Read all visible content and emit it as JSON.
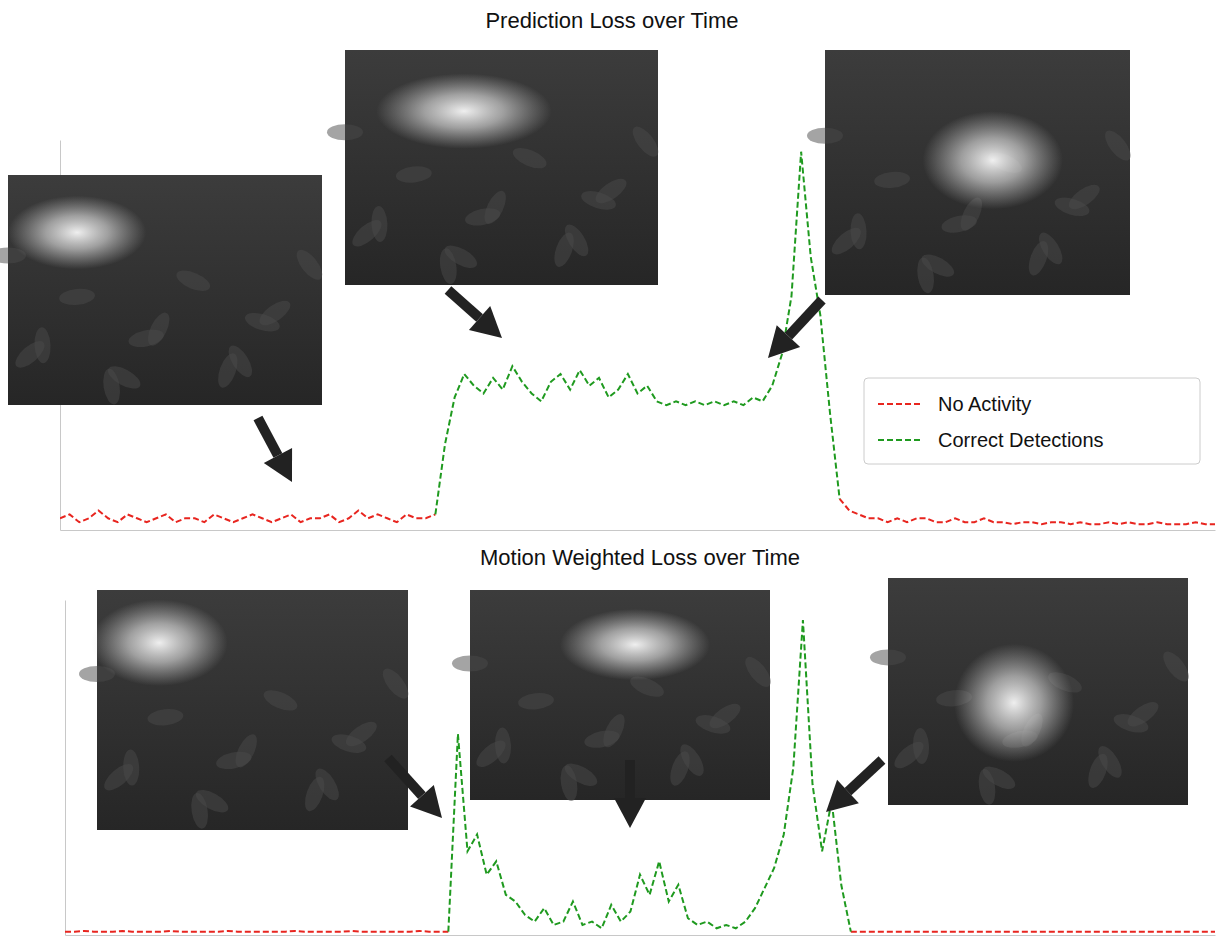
{
  "chart_data": [
    {
      "type": "line",
      "title": "Prediction Loss over Time",
      "tick_labels": false,
      "legend": "right",
      "line_style": "dashed",
      "xlim": [
        0,
        120
      ],
      "ylim": [
        0,
        100
      ],
      "x": [
        0,
        1,
        2,
        3,
        4,
        5,
        6,
        7,
        8,
        9,
        10,
        11,
        12,
        13,
        14,
        15,
        16,
        17,
        18,
        19,
        20,
        21,
        22,
        23,
        24,
        25,
        26,
        27,
        28,
        29,
        30,
        31,
        32,
        33,
        34,
        35,
        36,
        37,
        38,
        39,
        40,
        41,
        42,
        43,
        44,
        45,
        46,
        47,
        48,
        49,
        50,
        51,
        52,
        53,
        54,
        55,
        56,
        57,
        58,
        59,
        60,
        61,
        62,
        63,
        64,
        65,
        66,
        67,
        68,
        69,
        70,
        71,
        72,
        73,
        74,
        75,
        76,
        77,
        78,
        79,
        80,
        81,
        82,
        83,
        84,
        85,
        86,
        87,
        88,
        89,
        90,
        91,
        92,
        93,
        94,
        95,
        96,
        97,
        98,
        99,
        100,
        101,
        102,
        103,
        104,
        105,
        106,
        107,
        108,
        109,
        110,
        111,
        112,
        113,
        114,
        115,
        116,
        117,
        118,
        119,
        120
      ],
      "series": [
        {
          "name": "No Activity",
          "color": "#e8251f",
          "values": [
            3,
            4,
            2,
            3,
            5,
            3,
            2,
            4,
            3,
            2,
            3,
            4,
            2,
            3,
            3,
            2,
            4,
            3,
            2,
            3,
            4,
            3,
            2,
            3,
            4,
            2,
            3,
            3,
            4,
            2,
            3,
            5,
            3,
            4,
            3,
            2,
            4,
            3,
            3,
            4,
            null,
            null,
            null,
            null,
            null,
            null,
            null,
            null,
            null,
            null,
            null,
            null,
            null,
            null,
            null,
            null,
            null,
            null,
            null,
            null,
            null,
            null,
            null,
            null,
            null,
            null,
            null,
            null,
            null,
            null,
            null,
            null,
            null,
            null,
            null,
            null,
            null,
            null,
            null,
            null,
            null,
            8,
            5,
            4,
            3,
            3,
            2,
            3,
            2,
            3,
            3,
            2,
            2,
            3,
            2,
            2,
            3,
            2,
            2,
            1.5,
            2,
            2,
            1.5,
            2,
            2,
            1.5,
            2,
            1.5,
            1.5,
            2,
            1.5,
            2,
            1.5,
            1.5,
            2,
            1.5,
            1.5,
            1.5,
            2,
            1.5,
            1.5
          ]
        },
        {
          "name": "Correct Detections",
          "color": "#1f9a1f",
          "values": [
            null,
            null,
            null,
            null,
            null,
            null,
            null,
            null,
            null,
            null,
            null,
            null,
            null,
            null,
            null,
            null,
            null,
            null,
            null,
            null,
            null,
            null,
            null,
            null,
            null,
            null,
            null,
            null,
            null,
            null,
            null,
            null,
            null,
            null,
            null,
            null,
            null,
            null,
            null,
            4,
            22,
            34,
            40,
            37,
            35,
            39,
            36,
            42,
            38,
            35,
            33,
            38,
            40,
            36,
            41,
            37,
            39,
            34,
            36,
            40,
            35,
            37,
            33,
            32,
            33,
            32,
            33,
            32,
            33,
            32,
            33,
            32,
            34,
            33,
            37,
            45,
            60,
            97,
            70,
            55,
            30,
            8,
            null,
            null,
            null,
            null,
            null,
            null,
            null,
            null,
            null,
            null,
            null,
            null,
            null,
            null,
            null,
            null,
            null,
            null,
            null,
            null,
            null,
            null,
            null,
            null,
            null,
            null,
            null,
            null,
            null,
            null,
            null,
            null,
            null,
            null,
            null,
            null,
            null,
            null,
            null
          ]
        }
      ]
    },
    {
      "type": "line",
      "title": "Motion Weighted Loss over Time",
      "tick_labels": false,
      "line_style": "dashed",
      "xlim": [
        0,
        120
      ],
      "ylim": [
        0,
        100
      ],
      "x": [
        0,
        1,
        2,
        3,
        4,
        5,
        6,
        7,
        8,
        9,
        10,
        11,
        12,
        13,
        14,
        15,
        16,
        17,
        18,
        19,
        20,
        21,
        22,
        23,
        24,
        25,
        26,
        27,
        28,
        29,
        30,
        31,
        32,
        33,
        34,
        35,
        36,
        37,
        38,
        39,
        40,
        41,
        42,
        43,
        44,
        45,
        46,
        47,
        48,
        49,
        50,
        51,
        52,
        53,
        54,
        55,
        56,
        57,
        58,
        59,
        60,
        61,
        62,
        63,
        64,
        65,
        66,
        67,
        68,
        69,
        70,
        71,
        72,
        73,
        74,
        75,
        76,
        77,
        78,
        79,
        80,
        81,
        82,
        83,
        84,
        85,
        86,
        87,
        88,
        89,
        90,
        91,
        92,
        93,
        94,
        95,
        96,
        97,
        98,
        99,
        100,
        101,
        102,
        103,
        104,
        105,
        106,
        107,
        108,
        109,
        110,
        111,
        112,
        113,
        114,
        115,
        116,
        117,
        118,
        119,
        120
      ],
      "series": [
        {
          "color": "#e8251f",
          "values": [
            1,
            1,
            1.2,
            1,
            1,
            1,
            1.2,
            1,
            1,
            1,
            1,
            1.2,
            1,
            1,
            1,
            1,
            1,
            1.2,
            1,
            1,
            1,
            1,
            1,
            1,
            1.2,
            1,
            1,
            1,
            1,
            1,
            1.2,
            1,
            1,
            1,
            1,
            1,
            1,
            1.2,
            1,
            1,
            1,
            null,
            null,
            null,
            null,
            null,
            null,
            null,
            null,
            null,
            null,
            null,
            null,
            null,
            null,
            null,
            null,
            null,
            null,
            null,
            null,
            null,
            null,
            null,
            null,
            null,
            null,
            null,
            null,
            null,
            null,
            null,
            null,
            null,
            null,
            null,
            null,
            null,
            null,
            null,
            null,
            null,
            1,
            1,
            1,
            1,
            1,
            1,
            1,
            1,
            1,
            1,
            1,
            1,
            1,
            1,
            1,
            1,
            1,
            1,
            1,
            1,
            1,
            1,
            1,
            1,
            1,
            1,
            1,
            1,
            1,
            1,
            1,
            1,
            1,
            1,
            1,
            1,
            1,
            1,
            1
          ]
        },
        {
          "color": "#1f9a1f",
          "values": [
            null,
            null,
            null,
            null,
            null,
            null,
            null,
            null,
            null,
            null,
            null,
            null,
            null,
            null,
            null,
            null,
            null,
            null,
            null,
            null,
            null,
            null,
            null,
            null,
            null,
            null,
            null,
            null,
            null,
            null,
            null,
            null,
            null,
            null,
            null,
            null,
            null,
            null,
            null,
            null,
            1,
            60,
            25,
            30,
            18,
            22,
            12,
            10,
            6,
            4,
            8,
            3,
            4,
            10,
            3,
            4,
            2,
            9,
            4,
            7,
            18,
            12,
            22,
            10,
            15,
            5,
            3,
            4,
            2,
            3,
            2,
            4,
            8,
            14,
            20,
            30,
            50,
            94,
            45,
            25,
            40,
            15,
            1,
            null,
            null,
            null,
            null,
            null,
            null,
            null,
            null,
            null,
            null,
            null,
            null,
            null,
            null,
            null,
            null,
            null,
            null,
            null,
            null,
            null,
            null,
            null,
            null,
            null,
            null,
            null,
            null,
            null,
            null,
            null,
            null,
            null,
            null,
            null,
            null,
            null,
            null
          ]
        }
      ]
    }
  ]
}
